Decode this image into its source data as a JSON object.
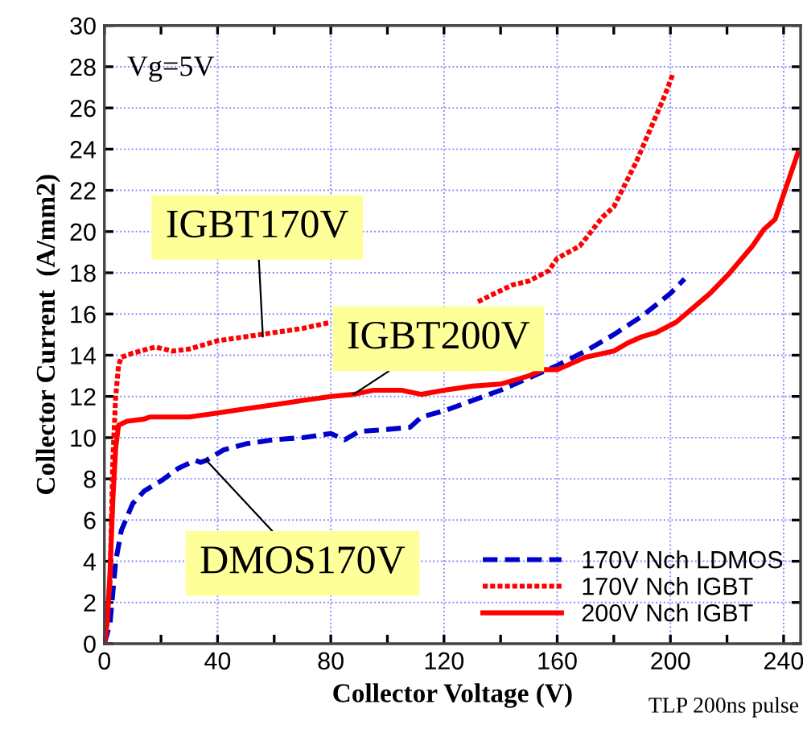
{
  "chart_data": {
    "type": "line",
    "xlabel": "Collector Voltage (V)",
    "ylabel": "Collector Current  (A/mm2)",
    "xlim": [
      0,
      246
    ],
    "ylim": [
      0,
      30
    ],
    "xticks": [
      0,
      {
        "value": 20,
        "label": null
      },
      40,
      {
        "value": 60,
        "label": null
      },
      80,
      {
        "value": 100,
        "label": null
      },
      120,
      {
        "value": 140,
        "label": null
      },
      160,
      {
        "value": 180,
        "label": null
      },
      200,
      {
        "value": 220,
        "label": null
      },
      240
    ],
    "yticks": [
      0,
      2,
      4,
      6,
      8,
      10,
      12,
      14,
      16,
      18,
      20,
      22,
      24,
      26,
      28,
      30
    ],
    "grid": true,
    "legend": "bottom right",
    "marker": "none",
    "series": [
      {
        "name": "170V Nch LDMOS",
        "color": "#0000cc",
        "line_style": "dashed",
        "x": [
          0,
          2,
          4,
          6,
          10,
          14,
          20,
          26,
          32,
          34,
          36,
          42,
          50,
          60,
          70,
          80,
          85,
          90,
          100,
          108,
          112,
          120,
          130,
          140,
          150,
          160,
          170,
          180,
          190,
          200,
          205
        ],
        "values": [
          0,
          1,
          4,
          5.5,
          6.8,
          7.4,
          7.9,
          8.5,
          8.9,
          8.8,
          8.9,
          9.4,
          9.7,
          9.9,
          10,
          10.2,
          9.9,
          10.3,
          10.4,
          10.5,
          11,
          11.3,
          11.8,
          12.3,
          12.9,
          13.5,
          14.2,
          15,
          15.9,
          17,
          17.7
        ]
      },
      {
        "name": "170V Nch IGBT",
        "color": "#ff0000",
        "line_style": "dotted",
        "x": [
          0,
          2,
          3,
          4,
          5,
          6,
          10,
          18,
          24,
          30,
          40,
          50,
          60,
          70,
          80,
          90,
          100,
          110,
          120,
          132,
          144,
          150,
          157,
          160,
          168,
          176,
          180,
          184,
          188,
          193,
          198,
          201
        ],
        "values": [
          0,
          3,
          9,
          12,
          13.5,
          13.9,
          14.1,
          14.4,
          14.2,
          14.3,
          14.7,
          14.9,
          15.1,
          15.3,
          15.6,
          null,
          null,
          null,
          null,
          16.6,
          17.4,
          17.6,
          18.1,
          18.7,
          19.3,
          20.7,
          21.2,
          22.3,
          23.4,
          25,
          26.6,
          27.7
        ]
      },
      {
        "name": "200V Nch IGBT",
        "color": "#ff0000",
        "line_style": "solid",
        "x": [
          0,
          1,
          2,
          3,
          4,
          5,
          8,
          14,
          16,
          30,
          40,
          50,
          60,
          70,
          80,
          88,
          95,
          105,
          112,
          120,
          130,
          140,
          150,
          155,
          160,
          165,
          170,
          180,
          185,
          190,
          195,
          202,
          208,
          214,
          221,
          229,
          233,
          237,
          241,
          245
        ],
        "values": [
          0,
          1,
          3.5,
          7,
          9.5,
          10.6,
          10.8,
          10.9,
          11,
          11,
          11.2,
          11.4,
          11.6,
          11.8,
          12,
          12.1,
          12.3,
          12.3,
          12.1,
          12.3,
          12.5,
          12.6,
          13.0,
          13.3,
          13.3,
          13.6,
          13.9,
          14.2,
          14.6,
          14.9,
          15.1,
          15.6,
          16.3,
          17,
          18,
          19.3,
          20.1,
          20.6,
          22.2,
          23.8
        ]
      }
    ],
    "annotations": [
      {
        "text": "IGBT170V",
        "x": 56,
        "y": 14.9
      },
      {
        "text": "IGBT200V",
        "x": 88,
        "y": 12.1
      },
      {
        "text": "DMOS170V",
        "x": 36,
        "y": 8.9
      },
      "Vg=5V",
      "TLP 200ns pulse"
    ]
  }
}
